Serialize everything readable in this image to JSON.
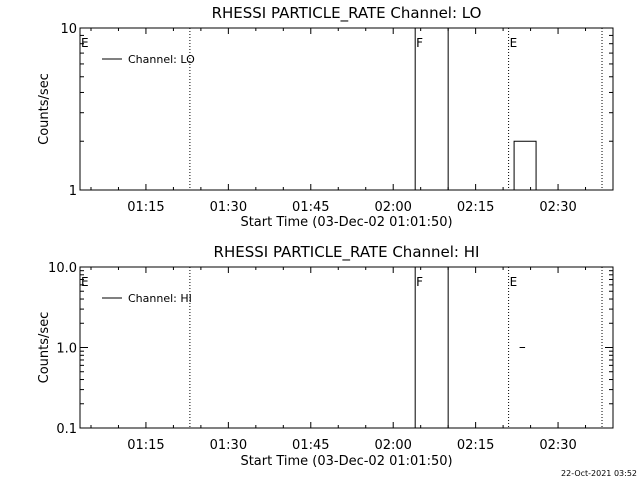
{
  "footer": {
    "timestamp": "22-Oct-2021 03:52"
  },
  "chart_data": [
    {
      "type": "line",
      "title": "RHESSI PARTICLE_RATE Channel: LO",
      "xlabel": "Start Time (03-Dec-02 01:01:50)",
      "ylabel": "Counts/sec",
      "x_domain": [
        "01:03",
        "02:40"
      ],
      "x_ticks": [
        "01:15",
        "01:30",
        "01:45",
        "02:00",
        "02:15",
        "02:30"
      ],
      "yscale": "log",
      "ylim": [
        1,
        10
      ],
      "y_ticks": [
        "1",
        "10"
      ],
      "legend": {
        "label": "Channel: LO",
        "position": "top-left"
      },
      "series": [
        {
          "name": "Channel: LO",
          "points": [
            [
              "02:22",
              1
            ],
            [
              "02:22",
              2
            ],
            [
              "02:26",
              2
            ],
            [
              "02:26",
              1
            ]
          ]
        }
      ],
      "markers": [
        {
          "label": "E",
          "time": "01:03",
          "style": "dotted"
        },
        {
          "label": "",
          "time": "01:23",
          "style": "dotted"
        },
        {
          "label": "F",
          "time": "02:04",
          "style": "solid"
        },
        {
          "label": "",
          "time": "02:10",
          "style": "solid"
        },
        {
          "label": "E",
          "time": "02:21",
          "style": "dotted"
        },
        {
          "label": "",
          "time": "02:38",
          "style": "dotted"
        }
      ]
    },
    {
      "type": "line",
      "title": "RHESSI PARTICLE_RATE Channel: HI",
      "xlabel": "Start Time (03-Dec-02 01:01:50)",
      "ylabel": "Counts/sec",
      "x_domain": [
        "01:03",
        "02:40"
      ],
      "x_ticks": [
        "01:15",
        "01:30",
        "01:45",
        "02:00",
        "02:15",
        "02:30"
      ],
      "yscale": "log",
      "ylim": [
        0.1,
        10
      ],
      "y_ticks": [
        "0.1",
        "1.0",
        "10.0"
      ],
      "legend": {
        "label": "Channel: HI",
        "position": "top-left"
      },
      "series": [
        {
          "name": "Channel: HI",
          "points": [
            [
              "02:23",
              1
            ],
            [
              "02:24",
              1
            ]
          ]
        }
      ],
      "markers": [
        {
          "label": "E",
          "time": "01:03",
          "style": "dotted"
        },
        {
          "label": "",
          "time": "01:23",
          "style": "dotted"
        },
        {
          "label": "F",
          "time": "02:04",
          "style": "solid"
        },
        {
          "label": "",
          "time": "02:10",
          "style": "solid"
        },
        {
          "label": "E",
          "time": "02:21",
          "style": "dotted"
        },
        {
          "label": "",
          "time": "02:38",
          "style": "dotted"
        }
      ]
    }
  ]
}
